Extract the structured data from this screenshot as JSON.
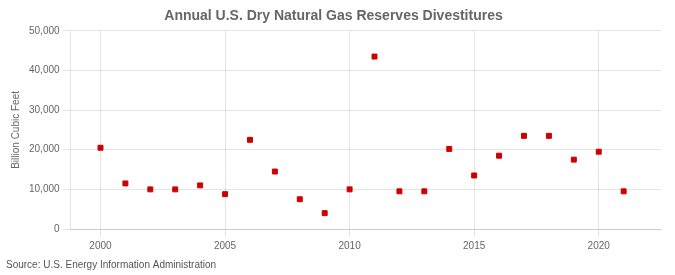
{
  "chart_data": {
    "type": "scatter",
    "title": "Annual U.S. Dry Natural Gas Reserves Divestitures",
    "ylabel": "Billion Cubic Feet",
    "annotation": "Source: U.S. Energy Information Administration",
    "x": [
      2000,
      2001,
      2002,
      2003,
      2004,
      2005,
      2006,
      2007,
      2008,
      2009,
      2010,
      2011,
      2012,
      2013,
      2014,
      2015,
      2016,
      2017,
      2018,
      2019,
      2020,
      2021
    ],
    "values": [
      20500,
      11500,
      10000,
      10000,
      11000,
      8800,
      22500,
      14500,
      7500,
      4000,
      10000,
      43500,
      9500,
      9500,
      20200,
      13500,
      18500,
      23500,
      23500,
      17500,
      19500,
      9500
    ],
    "color": "#cc0000",
    "marker": "square",
    "xlim": [
      1998.8,
      2022.5
    ],
    "xticks": [
      2000,
      2005,
      2010,
      2015,
      2020
    ],
    "ylim": [
      0,
      50000
    ],
    "yticks": [
      0,
      {
        "value": 10000,
        "label": "10,000"
      },
      {
        "value": 20000,
        "label": "20,000"
      },
      {
        "value": 30000,
        "label": "30,000"
      },
      {
        "value": 40000,
        "label": "40,000"
      },
      {
        "value": 50000,
        "label": "50,000"
      }
    ],
    "grid": true
  }
}
